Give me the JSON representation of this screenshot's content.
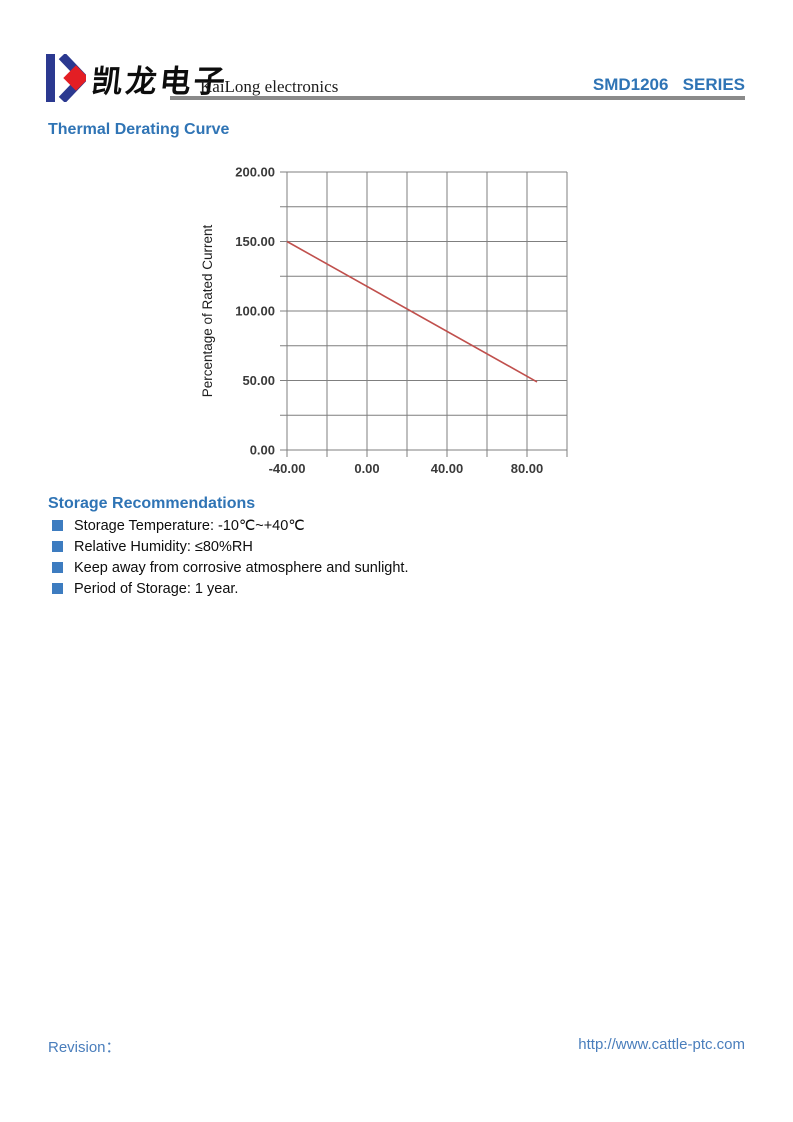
{
  "header": {
    "logo_chinese": "凯龙电子",
    "logo_english": "KaiLong electronics",
    "series": "SMD1206   SERIES"
  },
  "sections": {
    "thermal": {
      "title": "Thermal Derating Curve"
    },
    "storage": {
      "title": "Storage Recommendations",
      "items": [
        "Storage Temperature: -10℃~+40℃",
        "Relative Humidity: ≤80%RH",
        "Keep away from corrosive atmosphere and sunlight.",
        "Period of Storage: 1 year."
      ]
    }
  },
  "footer": {
    "revision_label": "Revision：",
    "website": "http://www.cattle-ptc.com"
  },
  "colors": {
    "accent_blue": "#2f74b5",
    "footer_blue": "#4a7ebc",
    "bullet_blue": "#3d7cc0",
    "logo_blue": "#2b3990",
    "logo_red": "#e31e24",
    "grid_gray": "#7f7f7f",
    "rule_gray": "#8a8a8a",
    "line_red": "#c0504d"
  },
  "chart_data": {
    "type": "line",
    "title": "Thermal Derating Curve",
    "xlabel": "",
    "ylabel": "Percentage of Rated Current",
    "xlim": [
      -40,
      100
    ],
    "ylim": [
      0,
      200
    ],
    "x_grid_step": 20,
    "y_grid_step": 25,
    "grid": true,
    "legend": false,
    "x_tick_labels": [
      {
        "value": -40,
        "label": "-40.00"
      },
      {
        "value": 0,
        "label": "0.00"
      },
      {
        "value": 40,
        "label": "40.00"
      },
      {
        "value": 80,
        "label": "80.00"
      }
    ],
    "y_tick_labels": [
      {
        "value": 0,
        "label": "0.00"
      },
      {
        "value": 50,
        "label": "50.00"
      },
      {
        "value": 100,
        "label": "100.00"
      },
      {
        "value": 150,
        "label": "150.00"
      },
      {
        "value": 200,
        "label": "200.00"
      }
    ],
    "series": [
      {
        "name": "thermal-derating-line",
        "color": "#c0504d",
        "points": [
          [
            -40,
            150
          ],
          [
            85,
            49
          ]
        ]
      }
    ]
  }
}
